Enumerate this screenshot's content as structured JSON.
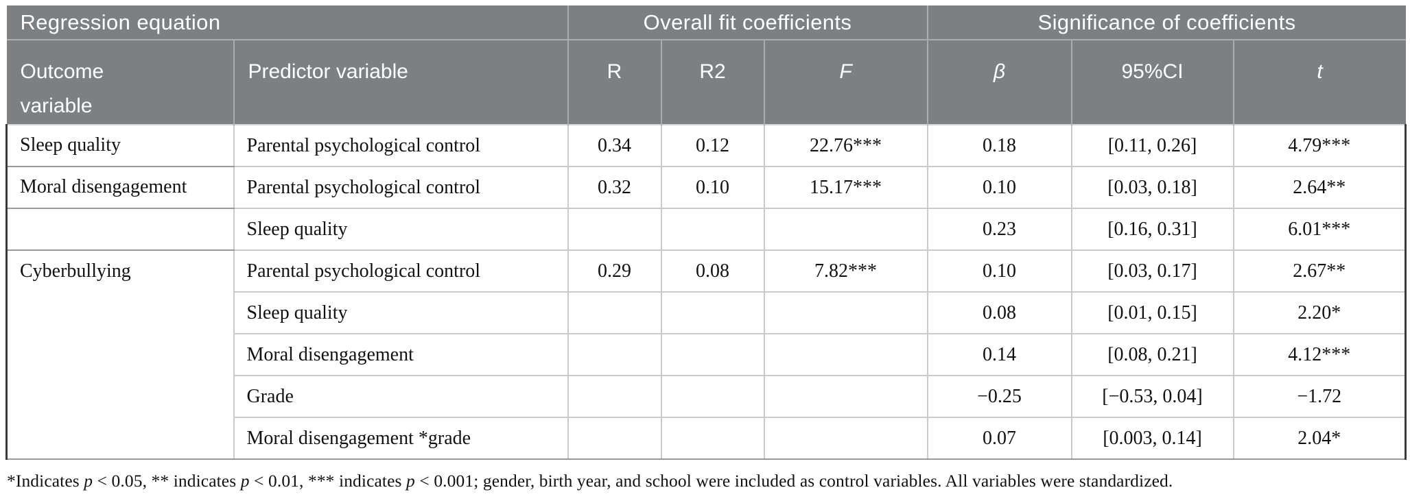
{
  "table": {
    "header_groups": [
      {
        "label": "Regression equation"
      },
      {
        "label": "Overall fit coefficients"
      },
      {
        "label": "Significance of coefficients"
      }
    ],
    "columns": [
      {
        "label": "Outcome\nvariable"
      },
      {
        "label": "Predictor variable"
      },
      {
        "label": "R"
      },
      {
        "label": "R2"
      },
      {
        "label": "F"
      },
      {
        "label": "β"
      },
      {
        "label": "95%CI"
      },
      {
        "label": "t"
      }
    ],
    "rows": [
      {
        "outcome": {
          "text": "Sleep quality",
          "rowspan": 1
        },
        "cells": [
          "Parental psychological control",
          "0.34",
          "0.12",
          "22.76***",
          "0.18",
          "[0.11, 0.26]",
          "4.79***"
        ]
      },
      {
        "outcome": {
          "text": "Moral disengagement",
          "rowspan": 1
        },
        "cells": [
          "Parental psychological control",
          "0.32",
          "0.10",
          "15.17***",
          "0.10",
          "[0.03, 0.18]",
          "2.64**"
        ]
      },
      {
        "outcome": {
          "text": "",
          "rowspan": 1
        },
        "cells": [
          "Sleep quality",
          "",
          "",
          "",
          "0.23",
          "[0.16, 0.31]",
          "6.01***"
        ]
      },
      {
        "outcome": {
          "text": "Cyberbullying",
          "rowspan": 5
        },
        "cells": [
          "Parental psychological control",
          "0.29",
          "0.08",
          "7.82***",
          "0.10",
          "[0.03, 0.17]",
          "2.67**"
        ]
      },
      {
        "cells": [
          "Sleep quality",
          "",
          "",
          "",
          "0.08",
          "[0.01, 0.15]",
          "2.20*"
        ]
      },
      {
        "cells": [
          "Moral disengagement",
          "",
          "",
          "",
          "0.14",
          "[0.08, 0.21]",
          "4.12***"
        ]
      },
      {
        "cells": [
          "Grade",
          "",
          "",
          "",
          "−0.25",
          "[−0.53, 0.04]",
          "−1.72"
        ]
      },
      {
        "cells": [
          "Moral disengagement *grade",
          "",
          "",
          "",
          "0.07",
          "[0.003, 0.14]",
          "2.04*"
        ]
      }
    ]
  },
  "footnote": {
    "segments": [
      {
        "text": "*Indicates "
      },
      {
        "text": "p",
        "italic": true
      },
      {
        "text": " < 0.05, ** indicates "
      },
      {
        "text": "p",
        "italic": true
      },
      {
        "text": " < 0.01, *** indicates "
      },
      {
        "text": "p",
        "italic": true
      },
      {
        "text": " < 0.001; gender, birth year, and school were included as control variables. All variables were standardized."
      }
    ]
  },
  "colors": {
    "header_bg": "#7d8083",
    "header_text": "#ffffff",
    "body_border": "#c8cacc",
    "outer_border": "#3a3a3a",
    "body_text": "#111111"
  }
}
